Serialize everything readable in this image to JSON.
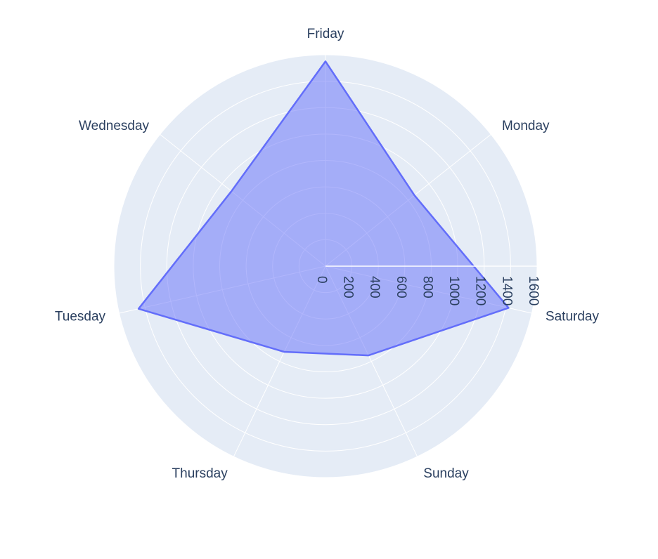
{
  "chart_data": {
    "type": "radar",
    "categories": [
      "Friday",
      "Monday",
      "Saturday",
      "Sunday",
      "Thursday",
      "Tuesday",
      "Wednesday"
    ],
    "series": [
      {
        "values": [
          1550,
          860,
          1420,
          750,
          720,
          1450,
          910
        ]
      }
    ],
    "radial_axis": {
      "range": [
        0,
        1600
      ],
      "ticks": [
        0,
        200,
        400,
        600,
        800,
        1000,
        1200,
        1400,
        1600
      ],
      "tick_labels": [
        "0",
        "200",
        "400",
        "600",
        "800",
        "1000",
        "1200",
        "1400",
        "1600"
      ]
    },
    "grid": true,
    "legend": "none"
  },
  "colors": {
    "plot_bg": "#e5ecf6",
    "grid": "#ffffff",
    "series_line": "#636efa",
    "series_fill": "rgba(99,110,250,0.5)",
    "text": "#2a3f5f"
  }
}
